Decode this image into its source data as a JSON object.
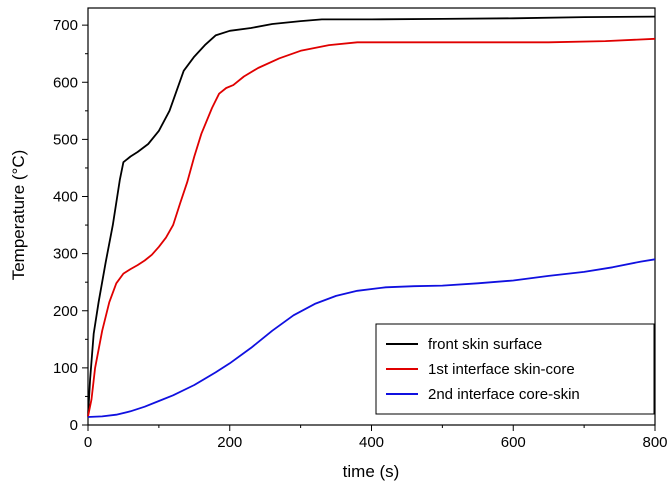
{
  "chart_data": {
    "type": "line",
    "title": "",
    "xlabel": "time (s)",
    "ylabel": "Temperature (°C)",
    "xlim": [
      0,
      800
    ],
    "ylim": [
      0,
      730
    ],
    "xticks": [
      0,
      200,
      400,
      600,
      800
    ],
    "yticks": [
      0,
      100,
      200,
      300,
      400,
      500,
      600,
      700
    ],
    "grid": false,
    "legend_position": "bottom-right",
    "series": [
      {
        "name": "front skin surface",
        "color": "#000000",
        "points": [
          [
            0,
            15
          ],
          [
            3,
            80
          ],
          [
            8,
            160
          ],
          [
            15,
            215
          ],
          [
            25,
            285
          ],
          [
            35,
            350
          ],
          [
            45,
            430
          ],
          [
            50,
            460
          ],
          [
            60,
            470
          ],
          [
            70,
            478
          ],
          [
            85,
            492
          ],
          [
            100,
            515
          ],
          [
            115,
            550
          ],
          [
            125,
            585
          ],
          [
            135,
            620
          ],
          [
            150,
            645
          ],
          [
            165,
            665
          ],
          [
            180,
            682
          ],
          [
            200,
            690
          ],
          [
            230,
            695
          ],
          [
            260,
            702
          ],
          [
            300,
            707
          ],
          [
            330,
            710
          ],
          [
            400,
            710
          ],
          [
            500,
            711
          ],
          [
            600,
            712
          ],
          [
            700,
            714
          ],
          [
            800,
            715
          ]
        ]
      },
      {
        "name": "1st interface skin-core",
        "color": "#e00000",
        "points": [
          [
            0,
            15
          ],
          [
            5,
            45
          ],
          [
            10,
            100
          ],
          [
            20,
            165
          ],
          [
            30,
            215
          ],
          [
            40,
            248
          ],
          [
            50,
            265
          ],
          [
            60,
            273
          ],
          [
            70,
            280
          ],
          [
            80,
            288
          ],
          [
            90,
            298
          ],
          [
            100,
            312
          ],
          [
            110,
            328
          ],
          [
            120,
            350
          ],
          [
            130,
            388
          ],
          [
            140,
            425
          ],
          [
            150,
            470
          ],
          [
            160,
            510
          ],
          [
            175,
            555
          ],
          [
            185,
            580
          ],
          [
            195,
            590
          ],
          [
            205,
            595
          ],
          [
            220,
            610
          ],
          [
            240,
            625
          ],
          [
            270,
            642
          ],
          [
            300,
            655
          ],
          [
            340,
            665
          ],
          [
            380,
            670
          ],
          [
            450,
            670
          ],
          [
            550,
            670
          ],
          [
            650,
            670
          ],
          [
            730,
            672
          ],
          [
            800,
            676
          ]
        ]
      },
      {
        "name": "2nd interface core-skin",
        "color": "#1010e0",
        "points": [
          [
            0,
            14
          ],
          [
            20,
            15
          ],
          [
            40,
            18
          ],
          [
            60,
            24
          ],
          [
            80,
            32
          ],
          [
            100,
            42
          ],
          [
            120,
            52
          ],
          [
            150,
            70
          ],
          [
            180,
            92
          ],
          [
            200,
            108
          ],
          [
            230,
            135
          ],
          [
            260,
            165
          ],
          [
            290,
            192
          ],
          [
            320,
            212
          ],
          [
            350,
            226
          ],
          [
            380,
            235
          ],
          [
            420,
            241
          ],
          [
            460,
            243
          ],
          [
            500,
            244
          ],
          [
            550,
            248
          ],
          [
            600,
            253
          ],
          [
            650,
            261
          ],
          [
            700,
            268
          ],
          [
            740,
            276
          ],
          [
            780,
            286
          ],
          [
            800,
            290
          ]
        ]
      }
    ]
  }
}
